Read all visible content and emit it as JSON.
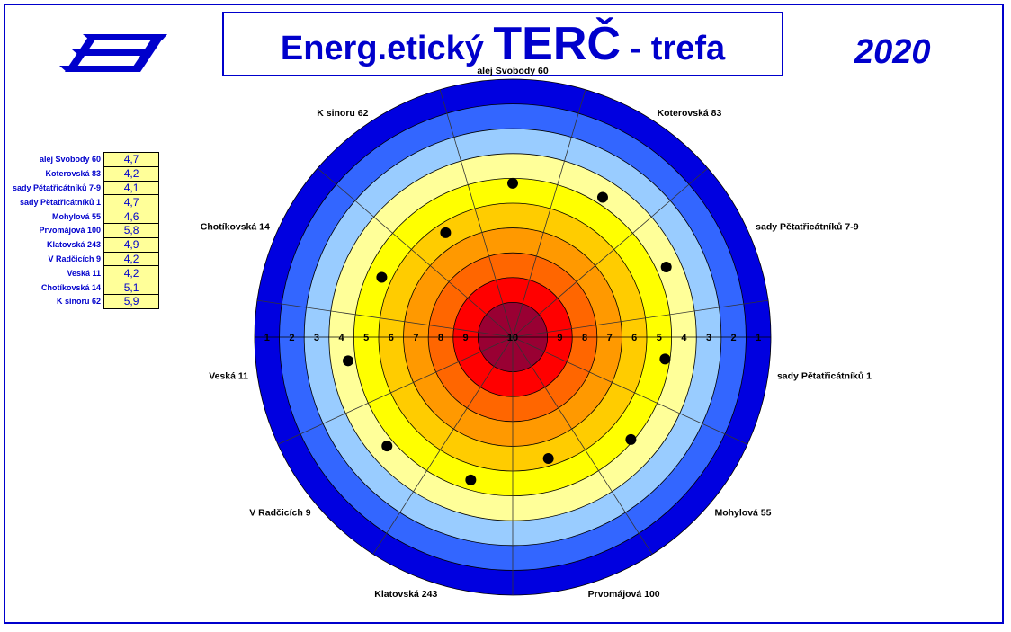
{
  "title": {
    "part1": "Energ.etický ",
    "part2": "TERČ",
    "part3": " - trefa"
  },
  "year": "2020",
  "logo_icon": "energy-e-logo",
  "colors": {
    "frame": "#0000cc",
    "accent": "#0000cc",
    "cell_bg": "#ffff99"
  },
  "chart_data": {
    "type": "radial-target",
    "ring_scale": [
      1,
      2,
      3,
      4,
      5,
      6,
      7,
      8,
      9,
      10
    ],
    "ring_colors": [
      "#0000e0",
      "#3366ff",
      "#99ccff",
      "#ffff99",
      "#ffff00",
      "#ffcc00",
      "#ff9900",
      "#ff6600",
      "#ff0000",
      "#990033"
    ],
    "categories": [
      "alej Svobody 60",
      "Koterovská 83",
      "sady Pětatřicátníků 7-9",
      "sady Pětatřicátníků 1",
      "Mohylová 55",
      "Prvomájová 100",
      "Klatovská 243",
      "V Radčicích 9",
      "Veská 11",
      "Chotíkovská 14",
      "K sinoru 62"
    ],
    "values": [
      4.7,
      4.2,
      4.1,
      4.7,
      4.6,
      5.8,
      4.9,
      4.2,
      4.2,
      5.1,
      5.9
    ],
    "value_labels": [
      "4,7",
      "4,2",
      "4,1",
      "4,7",
      "4,6",
      "5,8",
      "4,9",
      "4,2",
      "4,2",
      "5,1",
      "5,9"
    ]
  }
}
